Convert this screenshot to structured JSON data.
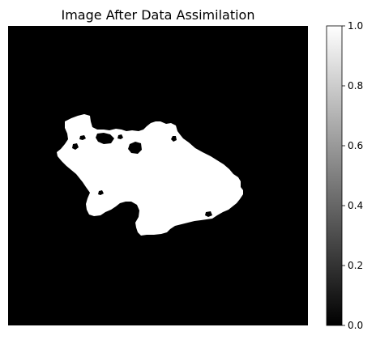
{
  "chart_data": {
    "type": "heatmap",
    "title": "Image After Data Assimilation",
    "colormap": "gray",
    "colormap_colors": {
      "low": "#000000",
      "high": "#ffffff"
    },
    "background_value": 0.0,
    "blob_value": 1.0,
    "value_range": [
      0.0,
      1.0
    ],
    "colorbar": {
      "ticks": [
        0.0,
        0.2,
        0.4,
        0.6,
        0.8,
        1.0
      ],
      "tick_labels": [
        "0.0",
        "0.2",
        "0.4",
        "0.6",
        "0.8",
        "1.0"
      ]
    },
    "axes_visible": false,
    "grid": false
  }
}
